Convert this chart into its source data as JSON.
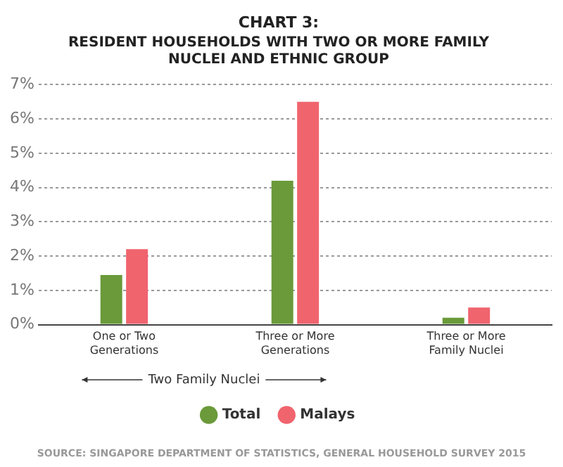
{
  "chart_data": {
    "type": "bar",
    "title": "CHART 3:",
    "subtitle": "RESIDENT HOUSEHOLDS WITH TWO OR MORE FAMILY NUCLEI AND ETHNIC GROUP",
    "categories": [
      "One or Two Generations",
      "Three or More Generations",
      "Three or More Family Nuclei"
    ],
    "series": [
      {
        "name": "Total",
        "color": "#6a9a3a",
        "values": [
          1.45,
          4.2,
          0.2
        ]
      },
      {
        "name": "Malays",
        "color": "#f0646e",
        "values": [
          2.2,
          6.5,
          0.5
        ]
      }
    ],
    "ylim": [
      0,
      7
    ],
    "yticks": [
      {
        "value": 0,
        "label": "0%"
      },
      {
        "value": 1,
        "label": "1%"
      },
      {
        "value": 2,
        "label": "2%"
      },
      {
        "value": 3,
        "label": "3%"
      },
      {
        "value": 4,
        "label": "4%"
      },
      {
        "value": 5,
        "label": "5%"
      },
      {
        "value": 6,
        "label": "6%"
      },
      {
        "value": 7,
        "label": "7%"
      }
    ],
    "grid": "y",
    "legend": "bottom",
    "annotations": [
      "Two Family Nuclei",
      "SOURCE: SINGAPORE DEPARTMENT OF STATISTICS, GENERAL HOUSEHOLD SURVEY 2015"
    ]
  }
}
